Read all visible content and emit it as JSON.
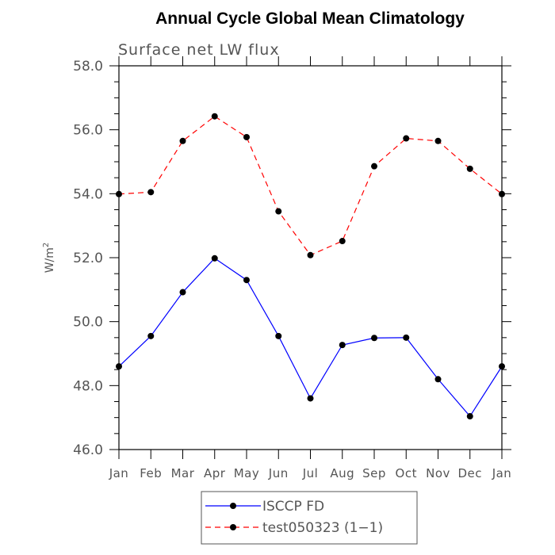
{
  "chart_data": {
    "type": "line",
    "title": "Annual Cycle Global Mean Climatology",
    "subtitle": "Surface net LW flux",
    "ylabel": "W/m",
    "ylabel_superscript": "2",
    "ylim": [
      46.0,
      58.0
    ],
    "yticks": [
      "46.0",
      "48.0",
      "50.0",
      "52.0",
      "54.0",
      "56.0",
      "58.0"
    ],
    "categories": [
      "Jan",
      "Feb",
      "Mar",
      "Apr",
      "May",
      "Jun",
      "Jul",
      "Aug",
      "Sep",
      "Oct",
      "Nov",
      "Dec",
      "Jan"
    ],
    "grid": false,
    "legend_position": "bottom",
    "series": [
      {
        "name": "ISCCP FD",
        "color": "#0000ff",
        "line_style": "solid",
        "values": [
          48.6,
          49.55,
          50.92,
          51.98,
          51.3,
          49.55,
          47.6,
          49.27,
          49.49,
          49.5,
          48.2,
          47.04,
          48.6
        ]
      },
      {
        "name": "test050323 (1−1)",
        "color": "#ff0000",
        "line_style": "dashed",
        "values": [
          53.99,
          54.05,
          55.65,
          56.42,
          55.77,
          53.45,
          52.08,
          52.52,
          54.86,
          55.73,
          55.65,
          54.78,
          53.99
        ]
      }
    ]
  }
}
